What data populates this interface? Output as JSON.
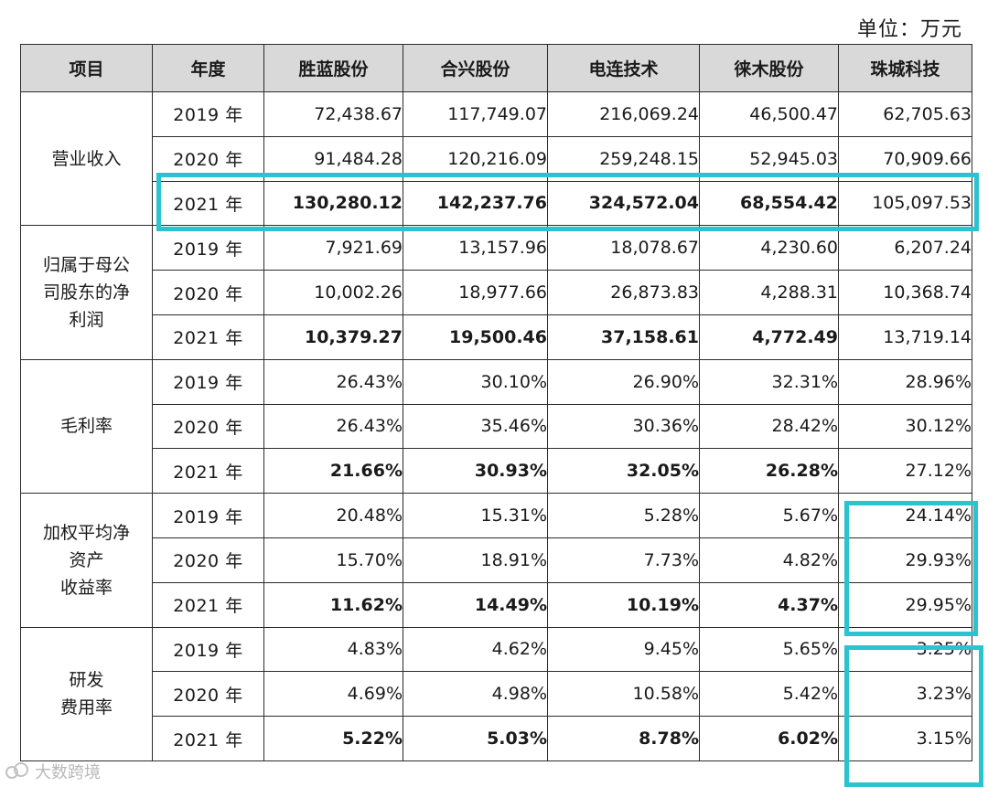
{
  "unit_label": "单位：万元",
  "headers": [
    "项目",
    "年度",
    "胜蓝股份",
    "合兴股份",
    "电连技术",
    "徕木股份",
    "珠城科技"
  ],
  "groups": [
    {
      "label_lines": [
        "营业收入"
      ],
      "rows": [
        {
          "year": "2019 年",
          "values": [
            "72,438.67",
            "117,749.07",
            "216,069.24",
            "46,500.47",
            "62,705.63"
          ]
        },
        {
          "year": "2020 年",
          "values": [
            "91,484.28",
            "120,216.09",
            "259,248.15",
            "52,945.03",
            "70,909.66"
          ]
        },
        {
          "year": "2021 年",
          "values": [
            "130,280.12",
            "142,237.76",
            "324,572.04",
            "68,554.42",
            "105,097.53"
          ]
        }
      ]
    },
    {
      "label_lines": [
        "归属于母公",
        "司股东的净",
        "利润"
      ],
      "rows": [
        {
          "year": "2019 年",
          "values": [
            "7,921.69",
            "13,157.96",
            "18,078.67",
            "4,230.60",
            "6,207.24"
          ]
        },
        {
          "year": "2020 年",
          "values": [
            "10,002.26",
            "18,977.66",
            "26,873.83",
            "4,288.31",
            "10,368.74"
          ]
        },
        {
          "year": "2021 年",
          "values": [
            "10,379.27",
            "19,500.46",
            "37,158.61",
            "4,772.49",
            "13,719.14"
          ]
        }
      ]
    },
    {
      "label_lines": [
        "毛利率"
      ],
      "rows": [
        {
          "year": "2019 年",
          "values": [
            "26.43%",
            "30.10%",
            "26.90%",
            "32.31%",
            "28.96%"
          ]
        },
        {
          "year": "2020 年",
          "values": [
            "26.43%",
            "35.46%",
            "30.36%",
            "28.42%",
            "30.12%"
          ]
        },
        {
          "year": "2021 年",
          "values": [
            "21.66%",
            "30.93%",
            "32.05%",
            "26.28%",
            "27.12%"
          ]
        }
      ]
    },
    {
      "label_lines": [
        "加权平均净",
        "资产",
        "收益率"
      ],
      "rows": [
        {
          "year": "2019 年",
          "values": [
            "20.48%",
            "15.31%",
            "5.28%",
            "5.67%",
            "24.14%"
          ]
        },
        {
          "year": "2020 年",
          "values": [
            "15.70%",
            "18.91%",
            "7.73%",
            "4.82%",
            "29.93%"
          ]
        },
        {
          "year": "2021 年",
          "values": [
            "11.62%",
            "14.49%",
            "10.19%",
            "4.37%",
            "29.95%"
          ]
        }
      ]
    },
    {
      "label_lines": [
        "研发",
        "费用率"
      ],
      "rows": [
        {
          "year": "2019 年",
          "values": [
            "4.83%",
            "4.62%",
            "9.45%",
            "5.65%",
            "3.25%"
          ]
        },
        {
          "year": "2020 年",
          "values": [
            "4.69%",
            "4.98%",
            "10.58%",
            "5.42%",
            "3.23%"
          ]
        },
        {
          "year": "2021 年",
          "values": [
            "5.22%",
            "5.03%",
            "8.78%",
            "6.02%",
            "3.15%"
          ]
        }
      ]
    }
  ],
  "watermark": "大数跨境",
  "colors": {
    "highlight": "#2ac3cf",
    "header_bg": "#d9d9d9"
  }
}
